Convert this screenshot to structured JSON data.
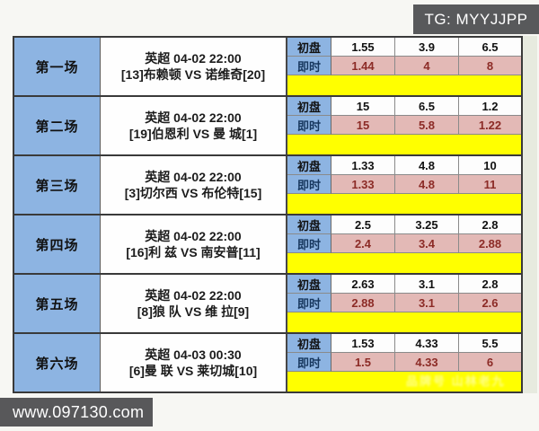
{
  "header": {
    "tg_badge": "TG: MYYJJPP"
  },
  "footer": {
    "site_url": "www.097130.com"
  },
  "odds_labels": {
    "initial": "初盘",
    "live": "即时"
  },
  "watermark": {
    "text": "品牌号 山林老九"
  },
  "colors": {
    "header_col_blue": "#8db4e2",
    "live_row_pink": "#e3b9b6",
    "note_row_yellow": "#ffff00",
    "live_value_red": "#8c2b26",
    "badge_gray": "#58595b"
  },
  "matches": [
    {
      "label": "第一场",
      "league_time": "英超 04-02 22:00",
      "teams": "[13]布赖顿 VS 诺维奇[20]",
      "initial": [
        "1.55",
        "3.9",
        "6.5"
      ],
      "live": [
        "1.44",
        "4",
        "8"
      ]
    },
    {
      "label": "第二场",
      "league_time": "英超 04-02 22:00",
      "teams": "[19]伯恩利 VS 曼 城[1]",
      "initial": [
        "15",
        "6.5",
        "1.2"
      ],
      "live": [
        "15",
        "5.8",
        "1.22"
      ]
    },
    {
      "label": "第三场",
      "league_time": "英超 04-02 22:00",
      "teams": "[3]切尔西 VS 布伦特[15]",
      "initial": [
        "1.33",
        "4.8",
        "10"
      ],
      "live": [
        "1.33",
        "4.8",
        "11"
      ]
    },
    {
      "label": "第四场",
      "league_time": "英超 04-02 22:00",
      "teams": "[16]利 兹 VS 南安普[11]",
      "initial": [
        "2.5",
        "3.25",
        "2.8"
      ],
      "live": [
        "2.4",
        "3.4",
        "2.88"
      ]
    },
    {
      "label": "第五场",
      "league_time": "英超 04-02 22:00",
      "teams": "[8]狼 队 VS 维 拉[9]",
      "initial": [
        "2.63",
        "3.1",
        "2.8"
      ],
      "live": [
        "2.88",
        "3.1",
        "2.6"
      ]
    },
    {
      "label": "第六场",
      "league_time": "英超 04-03 00:30",
      "teams": "[6]曼 联 VS 莱切城[10]",
      "initial": [
        "1.53",
        "4.33",
        "5.5"
      ],
      "live": [
        "1.5",
        "4.33",
        "6"
      ]
    }
  ]
}
